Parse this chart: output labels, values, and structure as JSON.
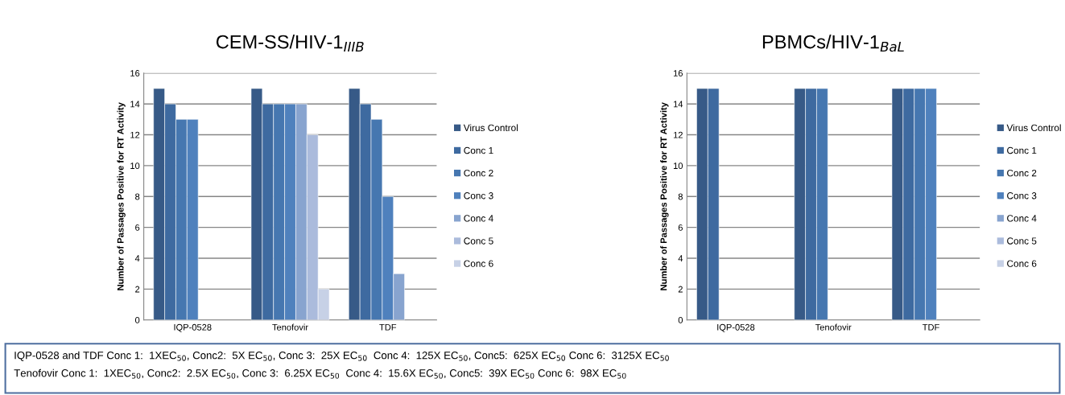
{
  "chart_data": [
    {
      "type": "bar",
      "title": "CEM-SS/HIV-1$_{IIIB}$",
      "ylabel": "Number of Passages Positive for RT Activity",
      "categories": [
        "IQP-0528",
        "Tenofovir",
        "TDF"
      ],
      "ylim": [
        0,
        16
      ],
      "yticks": [
        0,
        2,
        4,
        6,
        8,
        10,
        12,
        14,
        16
      ],
      "grid": "y",
      "legend": "right",
      "series": [
        {
          "name": "Virus Control",
          "color": "#375a87",
          "values": [
            15,
            15,
            15
          ]
        },
        {
          "name": "Conc 1",
          "color": "#3e6aa0",
          "values": [
            14,
            14,
            14
          ]
        },
        {
          "name": "Conc 2",
          "color": "#4677b0",
          "values": [
            13,
            14,
            13
          ]
        },
        {
          "name": "Conc 3",
          "color": "#4f81bd",
          "values": [
            13,
            14,
            8
          ]
        },
        {
          "name": "Conc 4",
          "color": "#88a4cf",
          "values": [
            null,
            14,
            3
          ]
        },
        {
          "name": "Conc 5",
          "color": "#abbbdc",
          "values": [
            null,
            12,
            null
          ]
        },
        {
          "name": "Conc 6",
          "color": "#c7d1e6",
          "values": [
            null,
            2,
            null
          ]
        }
      ],
      "annotations": [
        "IQP-0528 and TDF Conc 1:  1XEC$_{50}$, Conc2:  5X EC$_{50}$, Conc 3:  25X EC$_{50}$  Conc 4:  125X EC$_{50}$, Conc5:  625X EC$_{50}$ Conc 6:  3125X EC$_{50}$",
        "Tenofovir Conc 1:  1XEC$_{50}$, Conc2:  2.5X EC$_{50}$, Conc 3:  6.25X EC$_{50}$  Conc 4:  15.6X EC$_{50}$, Conc5:  39X EC$_{50}$ Conc 6:  98X EC$_{50}$"
      ]
    },
    {
      "type": "bar",
      "title": "PBMCs/HIV-1$_{BaL}$",
      "ylabel": "Number of Passages Positive for RT Activity",
      "categories": [
        "IQP-0528",
        "Tenofovir",
        "TDF"
      ],
      "ylim": [
        0,
        16
      ],
      "yticks": [
        0,
        2,
        4,
        6,
        8,
        10,
        12,
        14,
        16
      ],
      "grid": "y",
      "legend": "right",
      "series": [
        {
          "name": "Virus Control",
          "color": "#375a87",
          "values": [
            15,
            15,
            15
          ]
        },
        {
          "name": "Conc 1",
          "color": "#3e6aa0",
          "values": [
            15,
            15,
            15
          ]
        },
        {
          "name": "Conc 2",
          "color": "#4677b0",
          "values": [
            null,
            15,
            15
          ]
        },
        {
          "name": "Conc 3",
          "color": "#4f81bd",
          "values": [
            null,
            null,
            15
          ]
        },
        {
          "name": "Conc 4",
          "color": "#88a4cf",
          "values": [
            null,
            null,
            null
          ]
        },
        {
          "name": "Conc 5",
          "color": "#abbbdc",
          "values": [
            null,
            null,
            null
          ]
        },
        {
          "name": "Conc 6",
          "color": "#c7d1e6",
          "values": [
            null,
            null,
            null
          ]
        }
      ]
    }
  ]
}
